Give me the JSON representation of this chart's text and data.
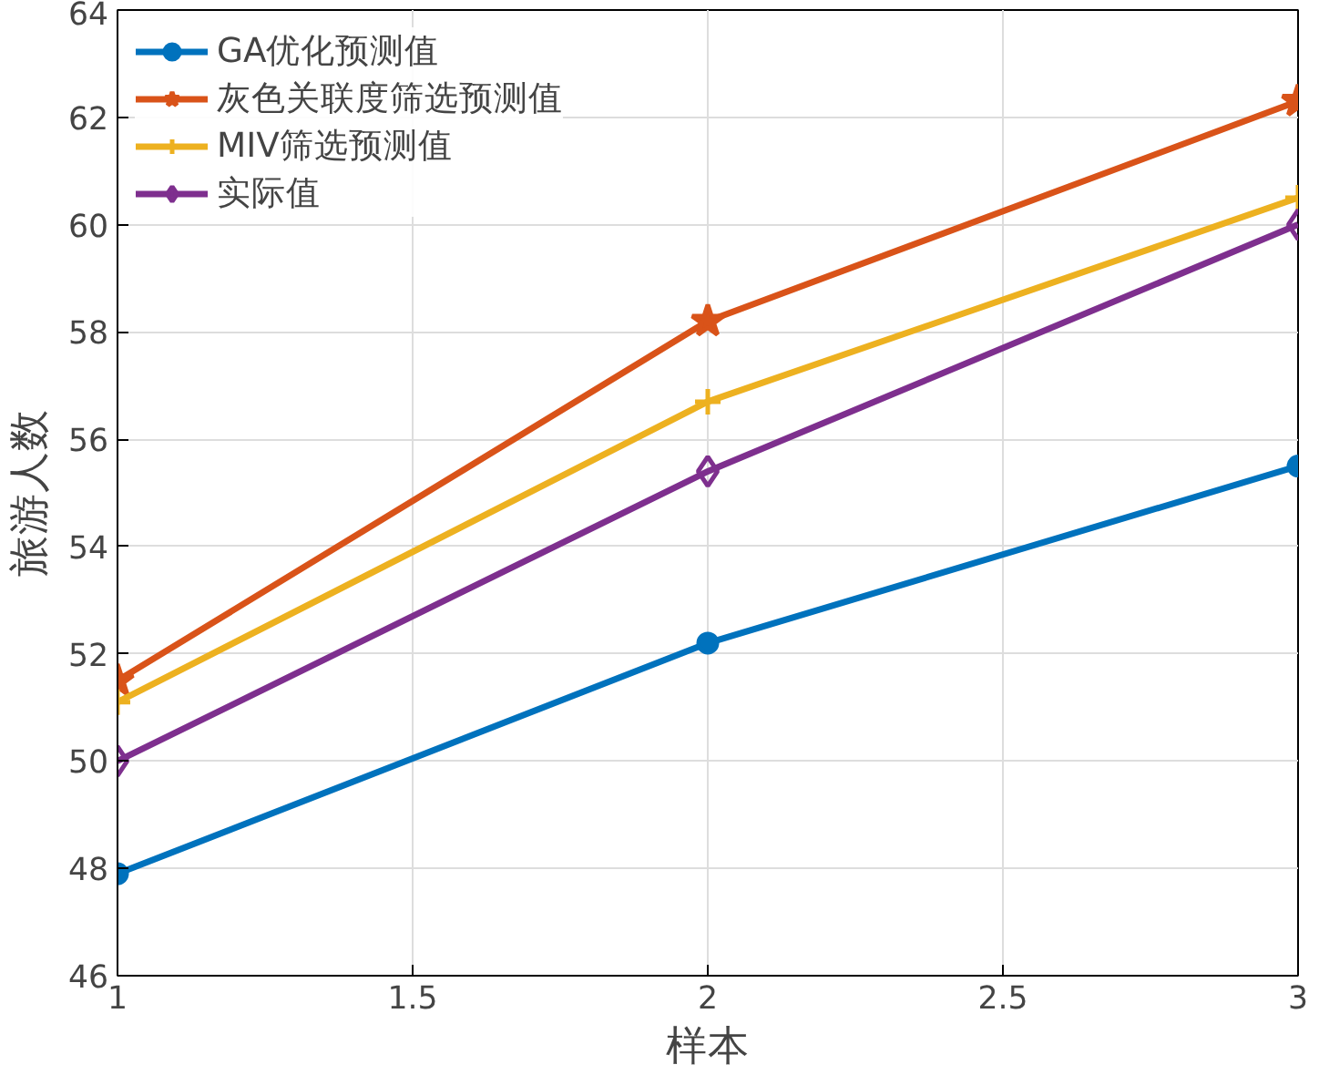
{
  "chart_data": {
    "type": "line",
    "xlabel": "样本",
    "ylabel": "旅游人数",
    "x": [
      1,
      2,
      3
    ],
    "series": [
      {
        "name": "GA优化预测值",
        "color": "#0072bd",
        "marker": "circle",
        "values": [
          47.9,
          52.2,
          55.5
        ]
      },
      {
        "name": "灰色关联度筛选预测值",
        "color": "#d95319",
        "marker": "star",
        "values": [
          51.5,
          58.2,
          62.3
        ]
      },
      {
        "name": "MIV筛选预测值",
        "color": "#edb120",
        "marker": "cross",
        "values": [
          51.1,
          56.7,
          60.5
        ]
      },
      {
        "name": "实际值",
        "color": "#7e2f8e",
        "marker": "diamond",
        "values": [
          50.0,
          55.4,
          60.0
        ]
      }
    ],
    "xlim": [
      1,
      3
    ],
    "xticks": [
      1,
      1.5,
      2,
      2.5,
      3
    ],
    "ylim": [
      46,
      64
    ],
    "yticks": [
      46,
      48,
      50,
      52,
      54,
      56,
      58,
      60,
      62,
      64
    ],
    "grid": true,
    "legend": "top left",
    "line_style": "solid"
  }
}
